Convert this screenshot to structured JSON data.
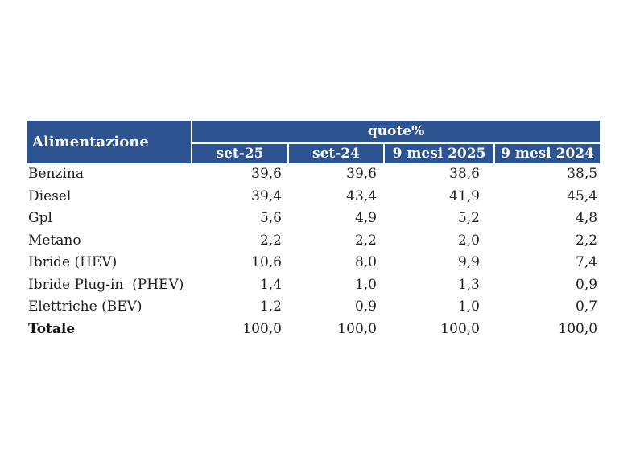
{
  "page": {
    "background_color": "#ffffff"
  },
  "table": {
    "accent_color": "#2d5391",
    "header_text_color": "#ffffff",
    "body_text_color": "#1c1c1c",
    "header": {
      "row_label": "Alimentazione",
      "group_label": "quote%",
      "columns": [
        "set-25",
        "set-24",
        "9 mesi 2025",
        "9 mesi 2024"
      ]
    },
    "rows": [
      {
        "label": "Benzina",
        "values": [
          "39,6",
          "39,6",
          "38,6",
          "38,5"
        ]
      },
      {
        "label": "Diesel",
        "values": [
          "39,4",
          "43,4",
          "41,9",
          "45,4"
        ]
      },
      {
        "label": "Gpl",
        "values": [
          "5,6",
          "4,9",
          "5,2",
          "4,8"
        ]
      },
      {
        "label": "Metano",
        "values": [
          "2,2",
          "2,2",
          "2,0",
          "2,2"
        ]
      },
      {
        "label": "Ibride (HEV)",
        "values": [
          "10,6",
          "8,0",
          "9,9",
          "7,4"
        ]
      },
      {
        "label": "Ibride Plug-in  (PHEV)",
        "values": [
          "1,4",
          "1,0",
          "1,3",
          "0,9"
        ]
      },
      {
        "label": "Elettriche (BEV)",
        "values": [
          "1,2",
          "0,9",
          "1,0",
          "0,7"
        ]
      }
    ],
    "total_row": {
      "label": "Totale",
      "values": [
        "100,0",
        "100,0",
        "100,0",
        "100,0"
      ]
    }
  }
}
